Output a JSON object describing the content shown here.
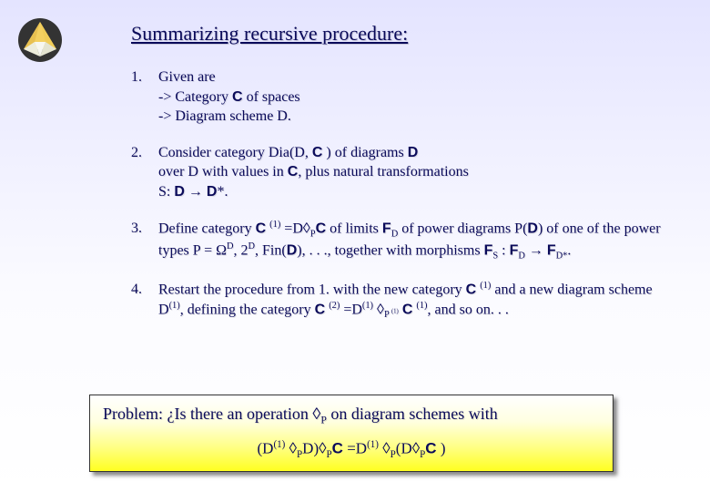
{
  "title": "Summarizing recursive procedure:",
  "logo": {
    "outer": "#333333",
    "top": "#f4d060",
    "left": "#e8c050",
    "bottom": "#f7f7f0"
  },
  "items": [
    {
      "num": "1.",
      "html": "Given are<br>-&gt; Category <span class='sans'>C</span> of spaces<br>-&gt; Diagram scheme D."
    },
    {
      "num": "2.",
      "html": "Consider category Dia(D, <span class='sans'>C</span> ) of diagrams <span class='sans'>D</span><br>over D with values in <span class='sans'>C</span>, plus natural transformations<br>S: <span class='sans'>D</span> &rarr; <span class='sans'>D</span>*."
    },
    {
      "num": "3.",
      "html": "Define category <span class='sans'>C</span> <sup>(1)</sup> =D&loz;<sub>P</sub><span class='sans'>C</span> of limits <span class='sans'>F</span><sub>D</sub> of power diagrams P(<span class='sans'>D</span>) of one of the power types P = &Omega;<sup>D</sup>, 2<sup>D</sup>, Fin(<span class='sans'>D</span>), . . ., together with morphisms <span class='sans'>F</span><sub>S</sub> : <span class='sans'>F</span><sub>D</sub> &rarr; <span class='sans'>F</span><sub>D*</sub>."
    },
    {
      "num": "4.",
      "html": "Restart the procedure from 1. with the new category <span class='sans'>C</span> <sup>(1)</sup> and a new diagram scheme D<sup>(1)</sup>, defining the category <span class='sans'>C</span> <sup>(2)</sup> =D<sup>(1)</sup> &loz;<sub>P <sup>(1)</sup></sub> <span class='sans'>C</span> <sup>(1)</sup>, and so on. . ."
    }
  ],
  "problem": {
    "text_html": "Problem: &iquest;Is there an operation &loz;<sub>P</sub> on diagram schemes with",
    "formula_html": "(D<sup>(1)</sup> &loz;<sub>P</sub>D)&loz;<sub>P</sub><span class='sans'>C</span> =D<sup>(1)</sup> &loz;<sub>P</sub>(D&loz;<sub>P</sub><span class='sans'>C</span> )"
  },
  "colors": {
    "text": "#0a0a5a",
    "bg_top": "#e4e4ff",
    "bg_bottom": "#ffffff",
    "box_top": "#ffffff",
    "box_bottom": "#ffff20",
    "box_border": "#333333"
  }
}
